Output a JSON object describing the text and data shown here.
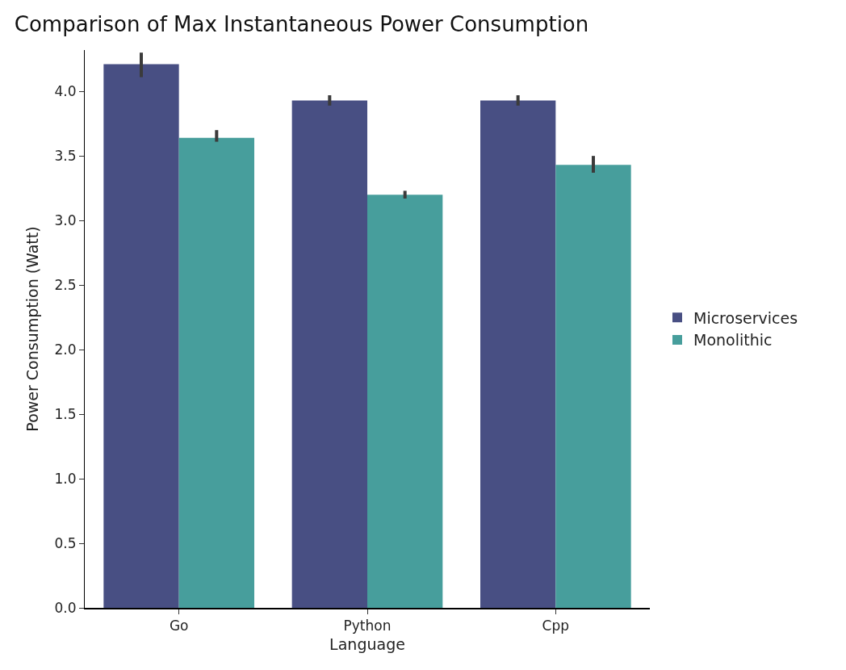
{
  "chart_data": {
    "type": "bar",
    "title": "Comparison of Max Instantaneous Power Consumption",
    "xlabel": "Language",
    "ylabel": "Power Consumption (Watt)",
    "categories": [
      "Go",
      "Python",
      "Cpp"
    ],
    "series": [
      {
        "name": "Microservices",
        "color": "#484f83",
        "values": [
          4.21,
          3.93,
          3.93
        ],
        "errors": [
          [
            4.11,
            4.3
          ],
          [
            3.89,
            3.97
          ],
          [
            3.89,
            3.97
          ]
        ]
      },
      {
        "name": "Monolithic",
        "color": "#479e9c",
        "values": [
          3.64,
          3.2,
          3.43
        ],
        "errors": [
          [
            3.61,
            3.7
          ],
          [
            3.17,
            3.23
          ],
          [
            3.37,
            3.5
          ]
        ]
      }
    ],
    "ylim": [
      0,
      4.32
    ],
    "yticks": [
      {
        "value": 0,
        "label": "0.0"
      },
      {
        "value": 0.5,
        "label": "0.5"
      },
      {
        "value": 1,
        "label": "1.0"
      },
      {
        "value": 1.5,
        "label": "1.5"
      },
      {
        "value": 2,
        "label": "2.0"
      },
      {
        "value": 2.5,
        "label": "2.5"
      },
      {
        "value": 3,
        "label": "3.0"
      },
      {
        "value": 3.5,
        "label": "3.5"
      },
      {
        "value": 4,
        "label": "4.0"
      }
    ],
    "grid": false,
    "legend": "right"
  }
}
